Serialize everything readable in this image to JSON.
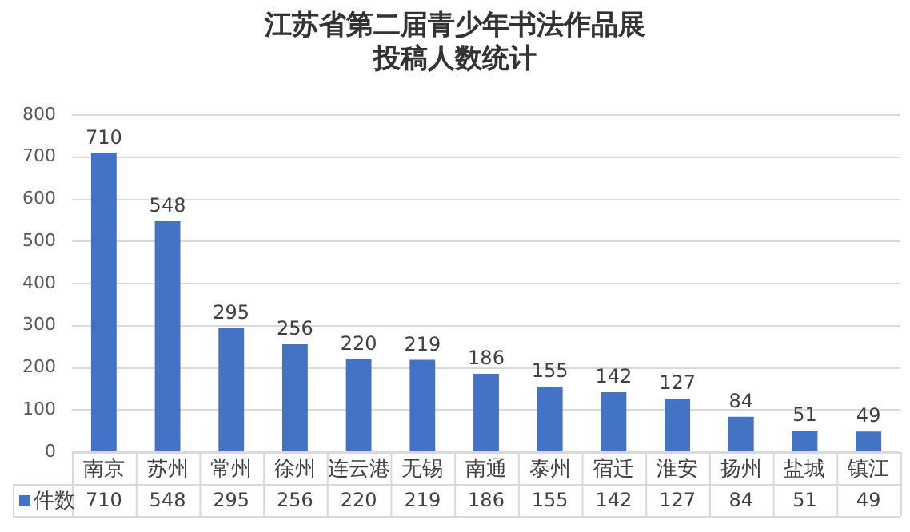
{
  "chart_data": {
    "type": "bar",
    "title": "江苏省第二届青少年书法作品展",
    "subtitle": "投稿人数统计",
    "categories": [
      "南京",
      "苏州",
      "常州",
      "徐州",
      "连云港",
      "无锡",
      "南通",
      "泰州",
      "宿迁",
      "淮安",
      "扬州",
      "盐城",
      "镇江"
    ],
    "series": [
      {
        "name": "件数",
        "color": "#4472c4",
        "values": [
          710,
          548,
          295,
          256,
          220,
          219,
          186,
          155,
          142,
          127,
          84,
          51,
          49
        ],
        "value_labels": [
          "710",
          "548",
          "295",
          "256",
          "220",
          "219",
          "186",
          "155",
          "142",
          "127",
          "84",
          "51",
          "49"
        ]
      }
    ],
    "annotations": [
      "710",
      "548",
      "295",
      "256",
      "220",
      "219",
      "186",
      "155",
      "142",
      "127",
      "84",
      "51",
      "49"
    ],
    "ylim": [
      0,
      800
    ],
    "yticks": [
      0,
      100,
      200,
      300,
      400,
      500,
      600,
      700,
      800
    ],
    "grid": "y"
  }
}
